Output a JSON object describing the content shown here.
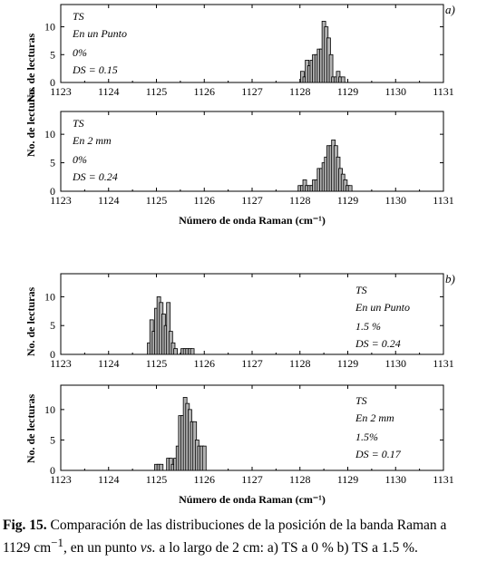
{
  "caption": {
    "fig_label": "Fig. 15.",
    "part1": " Comparación de las distribuciones de la posición de la banda Raman a 1129 cm",
    "sup": "−1",
    "part2": ", en un punto ",
    "vs": "vs.",
    "part3": " a lo largo de 2 cm: a) TS a 0 % b) TS a 1.5 %."
  },
  "chart_data": [
    {
      "type": "bar",
      "group": "a",
      "group_label": "a)",
      "ylabel": "No. de lecturas",
      "xlabel": "",
      "xlim": [
        1123,
        1131
      ],
      "ylim": [
        0,
        14
      ],
      "xticks": [
        "1123",
        "1124",
        "1125",
        "1126",
        "1127",
        "1128",
        "1129",
        "1130",
        "1131"
      ],
      "yticks": [
        "0",
        "5",
        "10"
      ],
      "annotation": [
        "TS",
        "En un Punto",
        "0%",
        "DS = 0.15"
      ],
      "x": [
        1128.05,
        1128.1,
        1128.15,
        1128.2,
        1128.25,
        1128.3,
        1128.35,
        1128.4,
        1128.45,
        1128.5,
        1128.55,
        1128.6,
        1128.65,
        1128.7,
        1128.75,
        1128.8,
        1128.85,
        1128.9
      ],
      "values": [
        2,
        1,
        4,
        3,
        4,
        5,
        5,
        6,
        6,
        11,
        10,
        8,
        5,
        1,
        1,
        2,
        1,
        1
      ]
    },
    {
      "type": "bar",
      "group": "a",
      "ylabel": "No. de lecturas",
      "xlabel": "Número de onda Raman (cm⁻¹)",
      "xlim": [
        1123,
        1131
      ],
      "ylim": [
        0,
        14
      ],
      "xticks": [
        "1123",
        "1124",
        "1125",
        "1126",
        "1127",
        "1128",
        "1129",
        "1130",
        "1131"
      ],
      "yticks": [
        "0",
        "5",
        "10"
      ],
      "annotation": [
        "TS",
        "En 2 mm",
        "0%",
        "DS = 0.24"
      ],
      "x": [
        1128.0,
        1128.05,
        1128.1,
        1128.15,
        1128.2,
        1128.25,
        1128.3,
        1128.35,
        1128.4,
        1128.45,
        1128.5,
        1128.55,
        1128.6,
        1128.65,
        1128.7,
        1128.75,
        1128.8,
        1128.85,
        1128.9,
        1128.95,
        1129.0,
        1129.05
      ],
      "values": [
        1,
        1,
        2,
        1,
        1,
        1,
        2,
        2,
        4,
        4,
        5,
        6,
        8,
        8,
        9,
        8,
        6,
        4,
        3,
        2,
        1,
        1
      ]
    },
    {
      "type": "bar",
      "group": "b",
      "group_label": "b)",
      "ylabel": "No. de lecturas",
      "xlabel": "",
      "xlim": [
        1123,
        1131
      ],
      "ylim": [
        0,
        14
      ],
      "xticks": [
        "1123",
        "1124",
        "1125",
        "1126",
        "1127",
        "1128",
        "1129",
        "1130",
        "1131"
      ],
      "yticks": [
        "0",
        "5",
        "10"
      ],
      "annotation": [
        "TS",
        "En un Punto",
        "1.5 %",
        "DS = 0.24"
      ],
      "x": [
        1124.85,
        1124.9,
        1124.95,
        1125.0,
        1125.05,
        1125.1,
        1125.15,
        1125.2,
        1125.25,
        1125.3,
        1125.35,
        1125.4,
        1125.55,
        1125.6,
        1125.65,
        1125.7,
        1125.75
      ],
      "values": [
        2,
        6,
        4,
        8,
        10,
        9,
        7,
        5,
        9,
        4,
        2,
        1,
        1,
        1,
        1,
        1,
        1
      ]
    },
    {
      "type": "bar",
      "group": "b",
      "ylabel": "No. de lecturas",
      "xlabel": "Número de onda Raman (cm⁻¹)",
      "xlim": [
        1123,
        1131
      ],
      "ylim": [
        0,
        14
      ],
      "xticks": [
        "1123",
        "1124",
        "1125",
        "1126",
        "1127",
        "1128",
        "1129",
        "1130",
        "1131"
      ],
      "yticks": [
        "0",
        "5",
        "10"
      ],
      "annotation": [
        "TS",
        "En 2 mm",
        "1.5%",
        "DS = 0.17"
      ],
      "x": [
        1125.0,
        1125.05,
        1125.1,
        1125.25,
        1125.3,
        1125.35,
        1125.4,
        1125.45,
        1125.5,
        1125.55,
        1125.6,
        1125.65,
        1125.7,
        1125.75,
        1125.8,
        1125.85,
        1125.9,
        1125.95,
        1126.0
      ],
      "values": [
        1,
        1,
        1,
        2,
        2,
        1,
        2,
        4,
        9,
        9,
        12,
        11,
        10,
        8,
        8,
        5,
        4,
        4,
        4
      ]
    }
  ]
}
